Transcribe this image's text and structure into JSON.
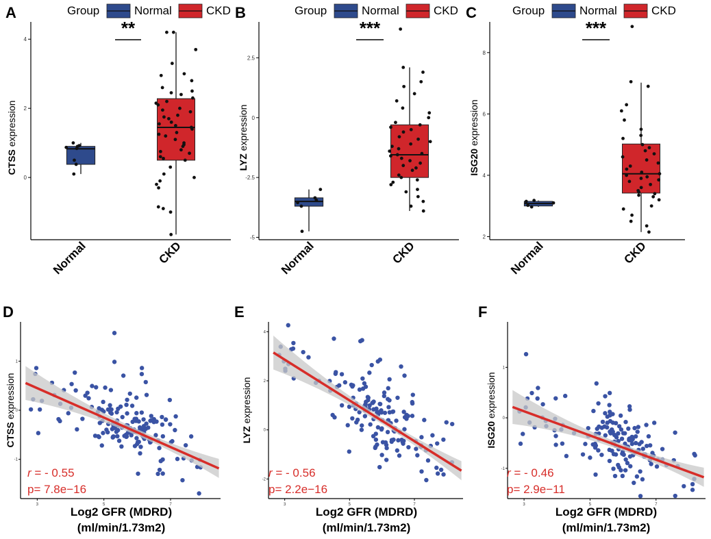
{
  "legend": {
    "title": "Group",
    "items": [
      "Normal",
      "CKD"
    ]
  },
  "colors": {
    "normal": "#2E4A8C",
    "ckd": "#D0262B",
    "dot": "#111111",
    "scatter": "#3A53A4",
    "fit": "#D72D29",
    "ribbon": "#C8C8C8",
    "stat": "#D72D29"
  },
  "chart_data": [
    {
      "panel": "A",
      "type": "box",
      "ylabel": "CTSS expression",
      "categories": [
        "Normal",
        "CKD"
      ],
      "yticks": [
        0,
        2,
        4
      ],
      "ylim": [
        -1.8,
        4.5
      ],
      "significance": "**",
      "boxes": [
        {
          "group": "Normal",
          "q1": 0.38,
          "median": 0.83,
          "q3": 0.9,
          "lo": 0.1,
          "hi": 1.0
        },
        {
          "group": "CKD",
          "q1": 0.5,
          "median": 1.45,
          "q3": 2.28,
          "lo": -1.65,
          "hi": 4.2
        }
      ],
      "points": [
        [
          0.1,
          0.38,
          0.5,
          0.84,
          0.87,
          0.9,
          0.92,
          1.0
        ],
        [
          4.2,
          4.2,
          3.7,
          3.3,
          3.0,
          2.95,
          2.8,
          2.6,
          2.5,
          2.45,
          2.4,
          2.3,
          2.2,
          2.15,
          2.1,
          2.0,
          1.95,
          1.9,
          1.8,
          1.75,
          1.7,
          1.6,
          1.55,
          1.5,
          1.45,
          1.4,
          1.3,
          1.25,
          1.2,
          1.1,
          1.0,
          0.95,
          0.9,
          0.8,
          0.75,
          0.7,
          0.6,
          0.55,
          0.5,
          0.3,
          0.1,
          0.0,
          -0.1,
          -0.2,
          -0.3,
          -0.85,
          -0.9,
          -1.0,
          -1.65
        ]
      ]
    },
    {
      "panel": "B",
      "type": "box",
      "ylabel": "LYZ expression",
      "categories": [
        "Normal",
        "CKD"
      ],
      "yticks": [
        -5.0,
        -2.5,
        0.0,
        2.5
      ],
      "ylim": [
        -5.1,
        4.0
      ],
      "significance": "***",
      "boxes": [
        {
          "group": "Normal",
          "q1": -3.7,
          "median": -3.5,
          "q3": -3.35,
          "lo": -4.75,
          "hi": -3.0
        },
        {
          "group": "CKD",
          "q1": -2.5,
          "median": -1.55,
          "q3": -0.3,
          "lo": -3.9,
          "hi": 2.1
        }
      ],
      "points": [
        [
          -4.75,
          -3.7,
          -3.55,
          -3.45,
          -3.35,
          -3.0
        ],
        [
          3.7,
          2.1,
          1.9,
          1.5,
          1.3,
          1.0,
          0.7,
          0.4,
          0.2,
          0.0,
          -0.2,
          -0.3,
          -0.4,
          -0.5,
          -0.6,
          -0.8,
          -0.9,
          -1.0,
          -1.1,
          -1.2,
          -1.3,
          -1.4,
          -1.5,
          -1.55,
          -1.6,
          -1.7,
          -1.8,
          -1.9,
          -2.0,
          -2.1,
          -2.2,
          -2.4,
          -2.5,
          -2.6,
          -2.7,
          -2.8,
          -3.0,
          -3.1,
          -3.3,
          -3.5,
          -3.7,
          -3.9
        ]
      ]
    },
    {
      "panel": "C",
      "type": "box",
      "ylabel": "ISG20 expression",
      "categories": [
        "Normal",
        "CKD"
      ],
      "yticks": [
        2,
        4,
        6,
        8
      ],
      "ylim": [
        1.9,
        9.0
      ],
      "significance": "***",
      "boxes": [
        {
          "group": "Normal",
          "q1": 3.0,
          "median": 3.08,
          "q3": 3.15,
          "lo": 2.97,
          "hi": 3.18
        },
        {
          "group": "CKD",
          "q1": 3.42,
          "median": 4.05,
          "q3": 5.02,
          "lo": 2.15,
          "hi": 7.02
        }
      ],
      "points": [
        [
          2.97,
          3.02,
          3.1,
          3.15,
          3.18
        ],
        [
          8.85,
          7.05,
          6.9,
          6.3,
          6.1,
          5.8,
          5.5,
          5.3,
          5.2,
          5.0,
          4.9,
          4.8,
          4.7,
          4.6,
          4.5,
          4.4,
          4.3,
          4.2,
          4.1,
          4.05,
          4.0,
          3.95,
          3.9,
          3.85,
          3.8,
          3.7,
          3.6,
          3.5,
          3.45,
          3.4,
          3.35,
          3.3,
          3.2,
          3.0,
          2.9,
          2.7,
          2.5,
          2.35,
          2.15
        ]
      ]
    },
    {
      "panel": "D",
      "type": "scatter",
      "ylabel": "CTSS expression",
      "xlabel": [
        "Log2 GFR (MDRD)",
        "(ml/min/1.73m2)"
      ],
      "xlim": [
        2.5,
        8.5
      ],
      "ylim": [
        -1.8,
        1.8
      ],
      "xticks": [
        3,
        5,
        7
      ],
      "yticks": [
        -1,
        0,
        1
      ],
      "fit": {
        "slope": -0.3,
        "intercept": 1.35
      },
      "stat": {
        "r_label": "r",
        "r_value": "= - 0.55",
        "p_label": "p=",
        "p_value": "7.8e−16"
      },
      "n": 165,
      "seed": 11
    },
    {
      "panel": "E",
      "type": "scatter",
      "ylabel": "LYZ expression",
      "xlabel": [
        "Log2 GFR (MDRD)",
        "(ml/min/1.73m2)"
      ],
      "xlim": [
        2.5,
        8.5
      ],
      "ylim": [
        -2.8,
        4.4
      ],
      "xticks": [
        3,
        5,
        7
      ],
      "yticks": [
        -2,
        0,
        2,
        4
      ],
      "fit": {
        "slope": -0.83,
        "intercept": 5.35
      },
      "stat": {
        "r_label": "r",
        "r_value": "= - 0.56",
        "p_label": "p=",
        "p_value": "2.2e−16"
      },
      "n": 165,
      "seed": 23
    },
    {
      "panel": "F",
      "type": "scatter",
      "ylabel": "ISG20 expression",
      "xlabel": [
        "Log2 GFR (MDRD)",
        "(ml/min/1.73m2)"
      ],
      "xlim": [
        2.5,
        8.5
      ],
      "ylim": [
        -1.6,
        1.9
      ],
      "xticks": [
        3,
        5,
        7
      ],
      "yticks": [
        -1,
        0,
        1
      ],
      "fit": {
        "slope": -0.24,
        "intercept": 0.85
      },
      "stat": {
        "r_label": "r",
        "r_value": "= - 0.46",
        "p_label": "p=",
        "p_value": "2.9e−11"
      },
      "n": 165,
      "seed": 37
    }
  ]
}
